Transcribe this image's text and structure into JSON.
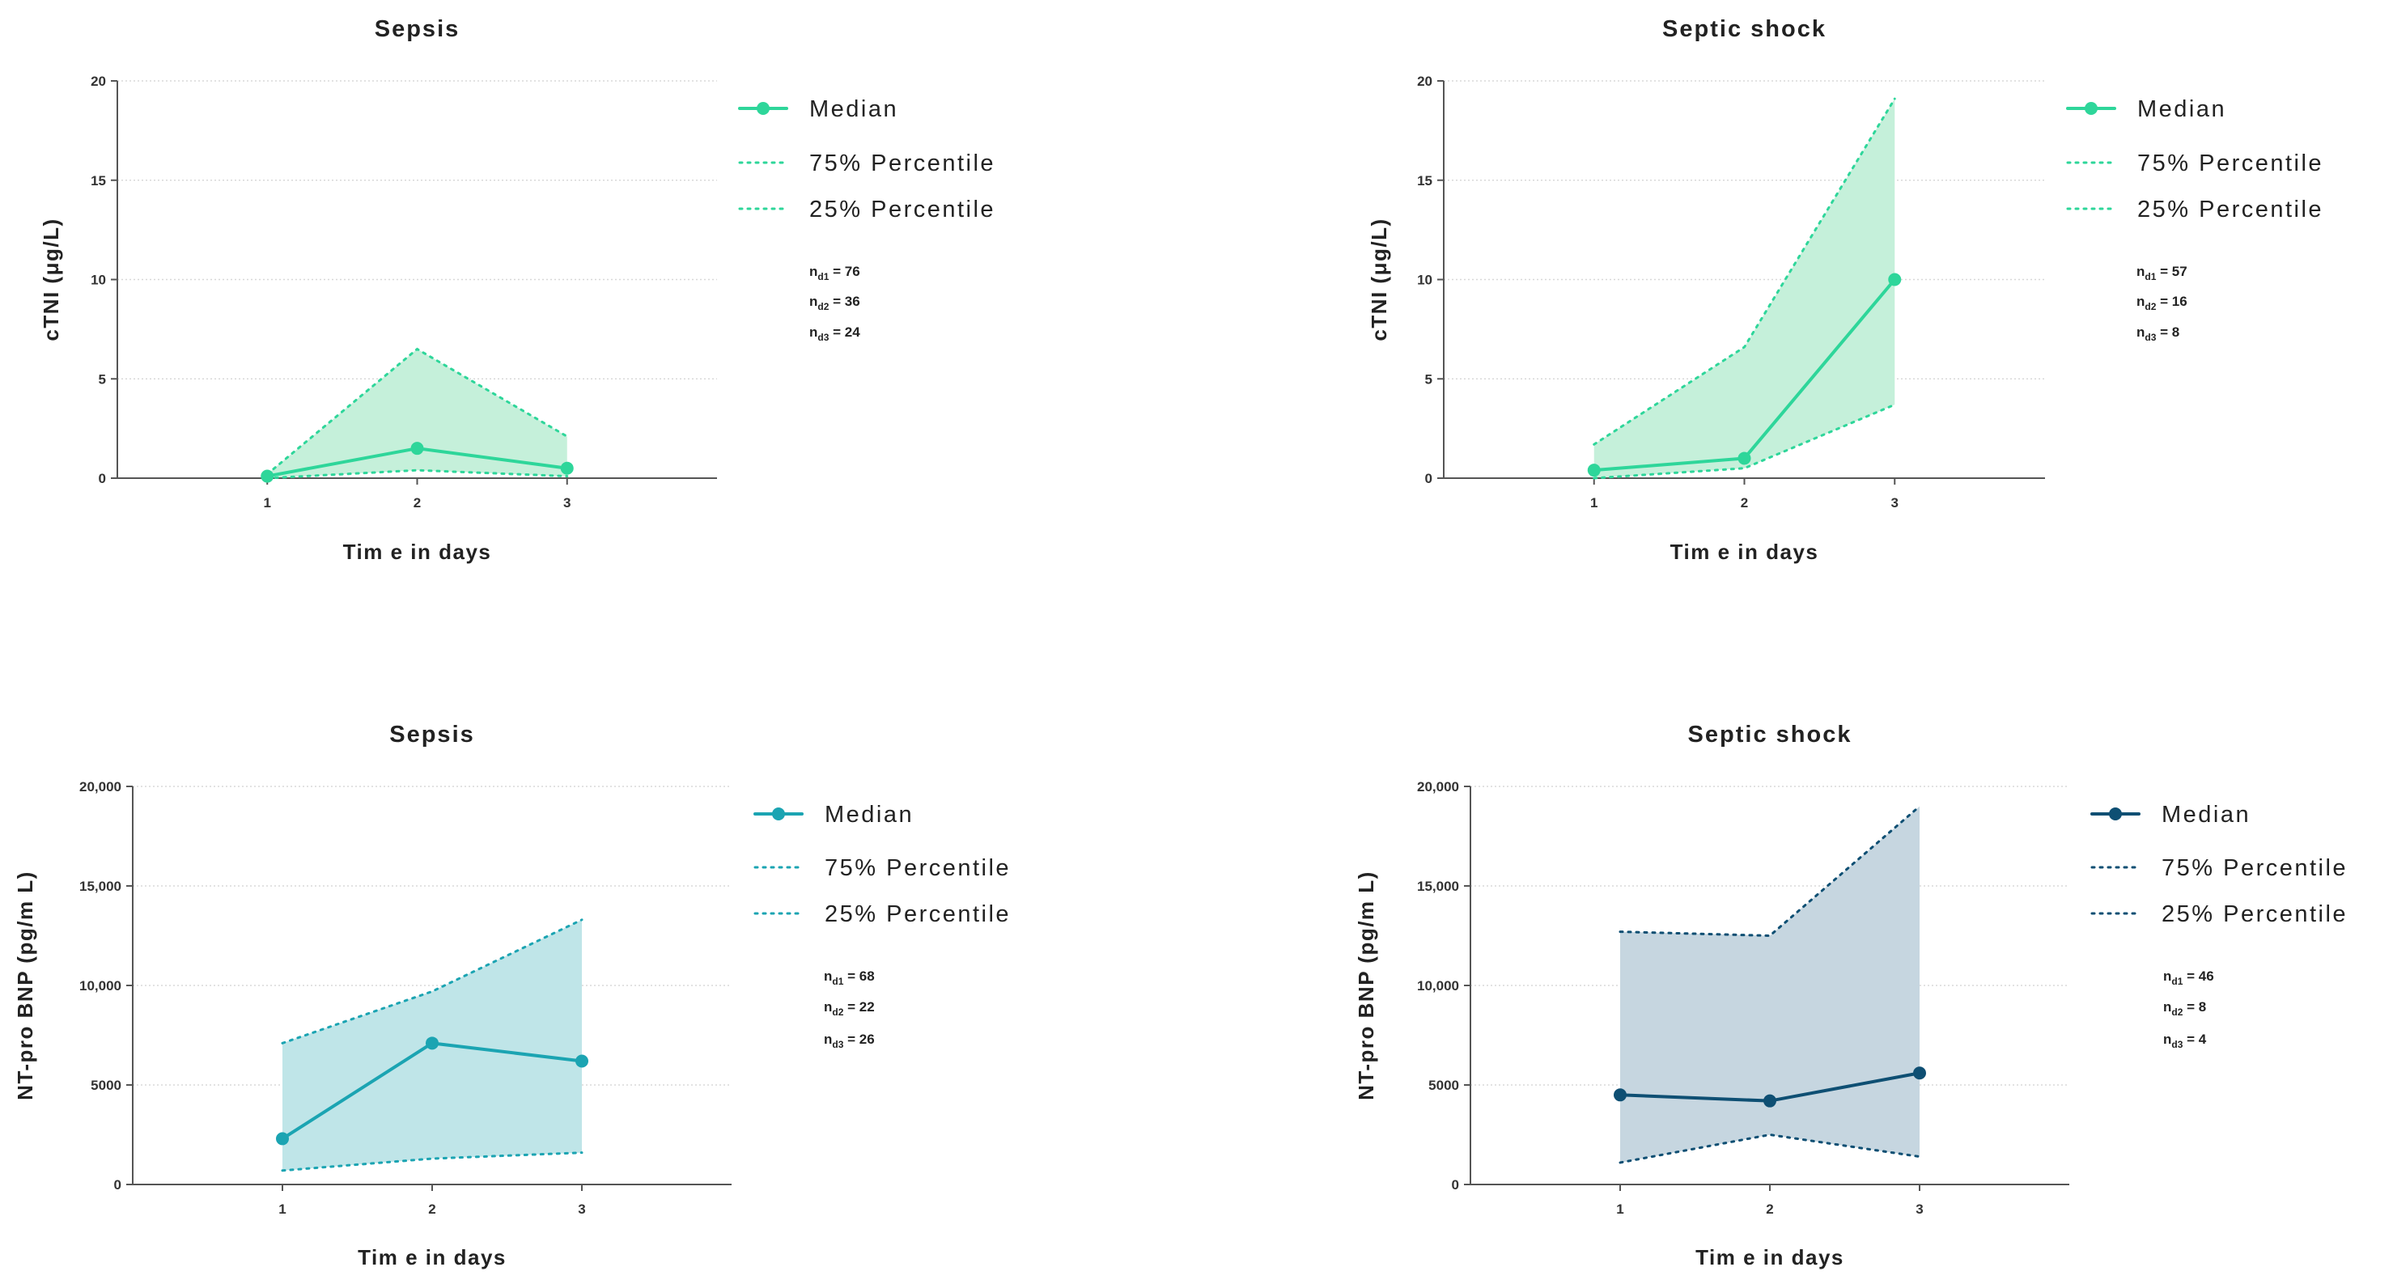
{
  "colors": {
    "cti_median": "#2ed69a",
    "cti_fill": "#c5f0da",
    "bnp_sepsis_median": "#1ba4b2",
    "bnp_sepsis_fill": "#bfe5e8",
    "bnp_shock_median": "#0e4f73",
    "bnp_shock_fill": "#c6d6e0",
    "grid": "#d8d8d8",
    "axis": "#555555"
  },
  "chart_data": [
    {
      "id": "p1",
      "type": "line",
      "title": "Sepsis",
      "xlabel": "Tim e in days",
      "ylabel": "cTNI (μg/L)",
      "x": [
        1,
        2,
        3
      ],
      "xticks": [
        "1",
        "2",
        "3"
      ],
      "xlim": [
        0,
        4
      ],
      "ylim": [
        0,
        20
      ],
      "yticks": [
        0,
        5,
        10,
        15,
        20
      ],
      "ytick_labels": [
        "0",
        "5",
        "10",
        "15",
        "20"
      ],
      "series": [
        {
          "name": "Median",
          "values": [
            0.1,
            1.5,
            0.5
          ]
        },
        {
          "name": "75% Percentile",
          "values": [
            0.2,
            6.5,
            2.1
          ]
        },
        {
          "name": "25% Percentile",
          "values": [
            0.0,
            0.4,
            0.1
          ]
        }
      ],
      "n_labels": [
        {
          "base": "n",
          "sub": "d1",
          "value": " = 76"
        },
        {
          "base": "n",
          "sub": "d2",
          "value": " = 36"
        },
        {
          "base": "n",
          "sub": "d3",
          "value": " = 24"
        }
      ],
      "grid": true,
      "legend_position": "right"
    },
    {
      "id": "p2",
      "type": "line",
      "title": "Septic shock",
      "xlabel": "Tim e in days",
      "ylabel": "cTNI (μg/L)",
      "x": [
        1,
        2,
        3
      ],
      "xticks": [
        "1",
        "2",
        "3"
      ],
      "xlim": [
        0,
        4
      ],
      "ylim": [
        0,
        20
      ],
      "yticks": [
        0,
        5,
        10,
        15,
        20
      ],
      "ytick_labels": [
        "0",
        "5",
        "10",
        "15",
        "20"
      ],
      "series": [
        {
          "name": "Median",
          "values": [
            0.4,
            1.0,
            10.0
          ]
        },
        {
          "name": "75% Percentile",
          "values": [
            1.7,
            6.6,
            19.1
          ]
        },
        {
          "name": "25% Percentile",
          "values": [
            0.0,
            0.5,
            3.7
          ]
        }
      ],
      "n_labels": [
        {
          "base": "n",
          "sub": "d1",
          "value": " = 57"
        },
        {
          "base": "n",
          "sub": "d2",
          "value": " = 16"
        },
        {
          "base": "n",
          "sub": "d3",
          "value": " = 8"
        }
      ],
      "grid": true,
      "legend_position": "right"
    },
    {
      "id": "p3",
      "type": "line",
      "title": "Sepsis",
      "xlabel": "Tim e in days",
      "ylabel": "NT-pro BNP (pg/m L)",
      "x": [
        1,
        2,
        3
      ],
      "xticks": [
        "1",
        "2",
        "3"
      ],
      "xlim": [
        0,
        4
      ],
      "ylim": [
        0,
        20000
      ],
      "yticks": [
        0,
        5000,
        10000,
        15000,
        20000
      ],
      "ytick_labels": [
        "0",
        "5000",
        "10,000",
        "15,000",
        "20,000"
      ],
      "series": [
        {
          "name": "Median",
          "values": [
            2300,
            7100,
            6200
          ]
        },
        {
          "name": "75% Percentile",
          "values": [
            7100,
            9700,
            13300
          ]
        },
        {
          "name": "25% Percentile",
          "values": [
            700,
            1300,
            1600
          ]
        }
      ],
      "n_labels": [
        {
          "base": "n",
          "sub": "d1",
          "value": " = 68"
        },
        {
          "base": "n",
          "sub": "d2",
          "value": " = 22"
        },
        {
          "base": "n",
          "sub": "d3",
          "value": " = 26"
        }
      ],
      "grid": true,
      "legend_position": "right"
    },
    {
      "id": "p4",
      "type": "line",
      "title": "Septic shock",
      "xlabel": "Tim e in days",
      "ylabel": "NT-pro BNP (pg/m L)",
      "x": [
        1,
        2,
        3
      ],
      "xticks": [
        "1",
        "2",
        "3"
      ],
      "xlim": [
        0,
        4
      ],
      "ylim": [
        0,
        20000
      ],
      "yticks": [
        0,
        5000,
        10000,
        15000,
        20000
      ],
      "ytick_labels": [
        "0",
        "5000",
        "10,000",
        "15,000",
        "20,000"
      ],
      "series": [
        {
          "name": "Median",
          "values": [
            4500,
            4200,
            5600
          ]
        },
        {
          "name": "75% Percentile",
          "values": [
            12700,
            12500,
            19000
          ]
        },
        {
          "name": "25% Percentile",
          "values": [
            1100,
            2500,
            1400
          ]
        }
      ],
      "n_labels": [
        {
          "base": "n",
          "sub": "d1",
          "value": " = 46"
        },
        {
          "base": "n",
          "sub": "d2",
          "value": " = 8"
        },
        {
          "base": "n",
          "sub": "d3",
          "value": " = 4"
        }
      ],
      "grid": true,
      "legend_position": "right"
    }
  ]
}
